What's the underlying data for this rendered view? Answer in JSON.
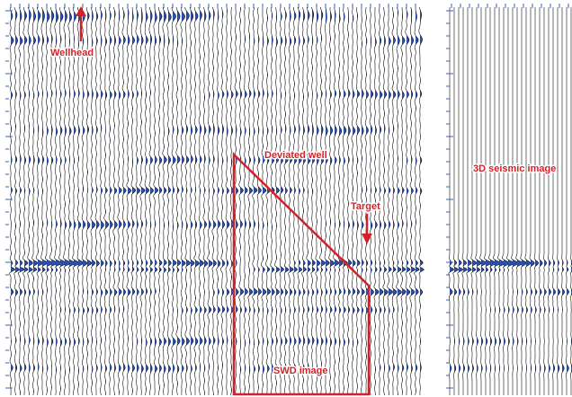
{
  "annotations": {
    "wellhead": "Wellhead",
    "deviated_well": "Deviated well",
    "target": "Target",
    "seismic_3d": "3D seismic image",
    "swd_image": "SWD image"
  }
}
